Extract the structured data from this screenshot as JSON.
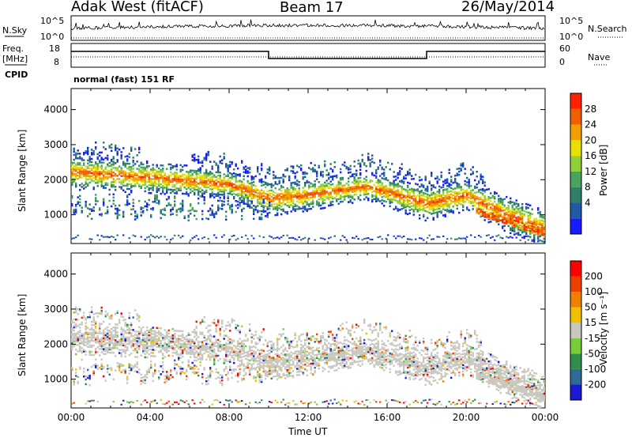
{
  "header": {
    "title_left": "Adak West (fitACF)",
    "title_center": "Beam 17",
    "title_right": "26/May/2014"
  },
  "top_panels": {
    "nsky_label": "N.Sky",
    "nsky_ticks": [
      "10^5",
      "10^0"
    ],
    "nsearch_label": "N.Search",
    "nsearch_ticks": [
      "10^5",
      "10^0"
    ],
    "freq_label_1": "Freq.",
    "freq_label_2": "[MHz]",
    "freq_ticks": [
      "18",
      "8"
    ],
    "nave_label": "Nave",
    "nave_ticks": [
      "60",
      "0"
    ],
    "cpid_label": "CPID",
    "cpid_value": "normal (fast) 151 RF"
  },
  "chart_data": [
    {
      "type": "heatmap",
      "name": "power",
      "ylabel": "Slant Range [km]",
      "yticks": [
        "4000",
        "3000",
        "2000",
        "1000"
      ],
      "yticks_values": [
        4000,
        3000,
        2000,
        1000
      ],
      "ylim": [
        180,
        4600
      ],
      "xlim_hours": [
        0,
        24
      ],
      "colorbar": {
        "label": "Power [dB]",
        "ticks": [
          "28",
          "24",
          "20",
          "16",
          "12",
          "8",
          "4"
        ],
        "tick_values": [
          28,
          24,
          20,
          16,
          12,
          8,
          4
        ],
        "range": [
          0,
          32
        ],
        "colors": [
          "#1a1aff",
          "#1f5aa6",
          "#2f7f6a",
          "#4aa35a",
          "#8fcf3a",
          "#e8e000",
          "#f0a000",
          "#f06000",
          "#ff2000"
        ]
      },
      "echo_bands": [
        {
          "t": 0,
          "r": 2200,
          "w": 200
        },
        {
          "t": 4,
          "r": 2050,
          "w": 180
        },
        {
          "t": 8,
          "r": 1850,
          "w": 160
        },
        {
          "t": 10,
          "r": 1450,
          "w": 200
        },
        {
          "t": 12,
          "r": 1550,
          "w": 180
        },
        {
          "t": 15,
          "r": 1800,
          "w": 160
        },
        {
          "t": 18,
          "r": 1300,
          "w": 200
        },
        {
          "t": 20,
          "r": 1550,
          "w": 180
        },
        {
          "t": 22,
          "r": 1000,
          "w": 200
        },
        {
          "t": 24,
          "r": 600,
          "w": 200
        }
      ]
    },
    {
      "type": "heatmap",
      "name": "velocity",
      "ylabel": "Slant Range [km]",
      "yticks": [
        "4000",
        "3000",
        "2000",
        "1000"
      ],
      "yticks_values": [
        4000,
        3000,
        2000,
        1000
      ],
      "ylim": [
        180,
        4600
      ],
      "xlim_hours": [
        0,
        24
      ],
      "xlabel": "Time UT",
      "xticks": [
        "00:00",
        "04:00",
        "08:00",
        "12:00",
        "16:00",
        "20:00",
        "00:00"
      ],
      "colorbar": {
        "label": "Velocity [m s⁻¹]",
        "ticks": [
          "200",
          "100",
          "50",
          "15",
          "-15",
          "-50",
          "-100",
          "-200"
        ],
        "colors": [
          "#1a1ad0",
          "#2e6a9a",
          "#2f8f4a",
          "#7acc3a",
          "#c8c8c0",
          "#f0c000",
          "#f08000",
          "#f04000",
          "#ff0000"
        ]
      }
    }
  ]
}
